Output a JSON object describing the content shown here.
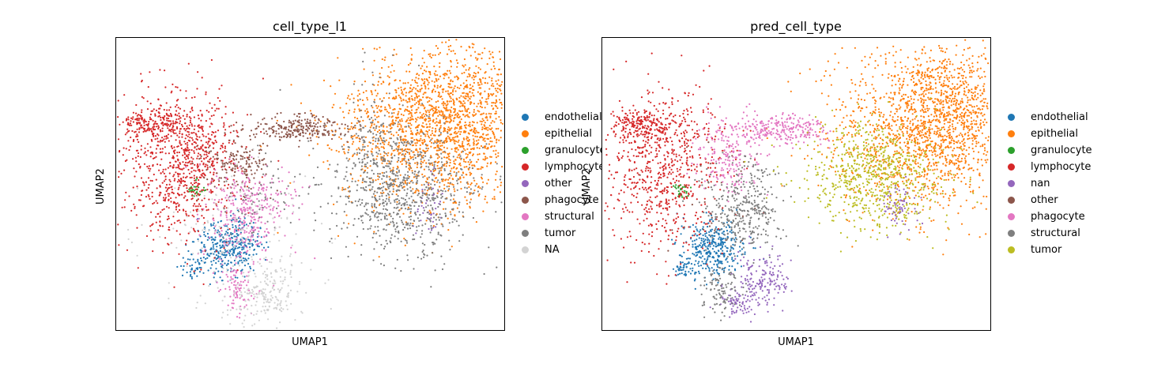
{
  "chart_data": [
    {
      "type": "scatter",
      "title": "cell_type_l1",
      "xlabel": "UMAP1",
      "ylabel": "UMAP2",
      "grid": false,
      "legend_position": "right",
      "series": [
        {
          "name": "endothelial",
          "color": "#1f77b4"
        },
        {
          "name": "epithelial",
          "color": "#ff7f0e"
        },
        {
          "name": "granulocyte",
          "color": "#2ca02c"
        },
        {
          "name": "lymphocyte",
          "color": "#d62728"
        },
        {
          "name": "other",
          "color": "#9467bd"
        },
        {
          "name": "phagocyte",
          "color": "#8c564b"
        },
        {
          "name": "structural",
          "color": "#e377c2"
        },
        {
          "name": "tumor",
          "color": "#7f7f7f"
        },
        {
          "name": "NA",
          "color": "#d3d3d3"
        }
      ]
    },
    {
      "type": "scatter",
      "title": "pred_cell_type",
      "xlabel": "UMAP1",
      "ylabel": "UMAP2",
      "grid": false,
      "legend_position": "right",
      "series": [
        {
          "name": "endothelial",
          "color": "#1f77b4"
        },
        {
          "name": "epithelial",
          "color": "#ff7f0e"
        },
        {
          "name": "granulocyte",
          "color": "#2ca02c"
        },
        {
          "name": "lymphocyte",
          "color": "#d62728"
        },
        {
          "name": "nan",
          "color": "#9467bd"
        },
        {
          "name": "other",
          "color": "#8c564b"
        },
        {
          "name": "phagocyte",
          "color": "#e377c2"
        },
        {
          "name": "structural",
          "color": "#7f7f7f"
        },
        {
          "name": "tumor",
          "color": "#bcbd22"
        }
      ]
    }
  ]
}
